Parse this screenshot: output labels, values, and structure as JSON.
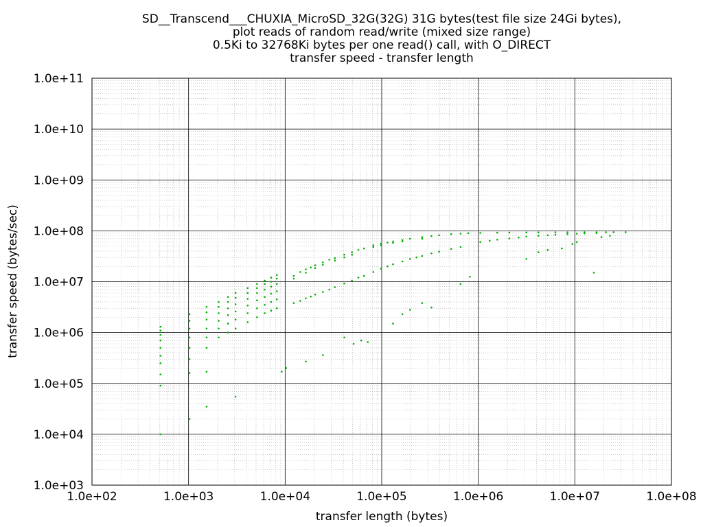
{
  "chart_data": {
    "type": "scatter",
    "title_lines": [
      "SD__Transcend___CHUXIA_MicroSD_32G(32G) 31G bytes(test file size 24Gi bytes),",
      "plot reads of random read/write (mixed size range)",
      "0.5Ki to 32768Ki bytes per one read() call, with O_DIRECT",
      "transfer speed - transfer length"
    ],
    "xlabel": "transfer length (bytes)",
    "ylabel": "transfer speed (bytes/sec)",
    "x_scale": "log",
    "y_scale": "log",
    "xlim": [
      100,
      100000000
    ],
    "ylim": [
      1000,
      100000000000
    ],
    "x_ticks": [
      {
        "value": 100,
        "label": "1.0e+02"
      },
      {
        "value": 1000,
        "label": "1.0e+03"
      },
      {
        "value": 10000,
        "label": "1.0e+04"
      },
      {
        "value": 100000,
        "label": "1.0e+05"
      },
      {
        "value": 1000000,
        "label": "1.0e+06"
      },
      {
        "value": 10000000,
        "label": "1.0e+07"
      },
      {
        "value": 100000000,
        "label": "1.0e+08"
      }
    ],
    "y_ticks": [
      {
        "value": 1000,
        "label": "1.0e+03"
      },
      {
        "value": 10000,
        "label": "1.0e+04"
      },
      {
        "value": 100000,
        "label": "1.0e+05"
      },
      {
        "value": 1000000,
        "label": "1.0e+06"
      },
      {
        "value": 10000000,
        "label": "1.0e+07"
      },
      {
        "value": 100000000,
        "label": "1.0e+08"
      },
      {
        "value": 1000000000,
        "label": "1.0e+09"
      },
      {
        "value": 10000000000,
        "label": "1.0e+10"
      },
      {
        "value": 100000000000,
        "label": "1.0e+11"
      }
    ],
    "grid": true,
    "legend": "none",
    "point_color": "#00b000",
    "series": [
      {
        "points": [
          [
            512,
            10000
          ],
          [
            512,
            90000
          ],
          [
            512,
            150000
          ],
          [
            512,
            250000
          ],
          [
            512,
            350000
          ],
          [
            512,
            500000
          ],
          [
            512,
            700000
          ],
          [
            512,
            900000
          ],
          [
            512,
            1100000
          ],
          [
            512,
            1300000
          ],
          [
            1024,
            20000
          ],
          [
            1024,
            160000
          ],
          [
            1024,
            300000
          ],
          [
            1024,
            500000
          ],
          [
            1024,
            800000
          ],
          [
            1024,
            1200000
          ],
          [
            1024,
            1700000
          ],
          [
            1024,
            2300000
          ],
          [
            1536,
            35000
          ],
          [
            1536,
            170000
          ],
          [
            1536,
            500000
          ],
          [
            1536,
            800000
          ],
          [
            1536,
            1200000
          ],
          [
            1536,
            1800000
          ],
          [
            1536,
            2500000
          ],
          [
            1536,
            3200000
          ],
          [
            2048,
            800000
          ],
          [
            2048,
            1200000
          ],
          [
            2048,
            1700000
          ],
          [
            2048,
            2400000
          ],
          [
            2048,
            3200000
          ],
          [
            2048,
            4000000
          ],
          [
            2560,
            1000000
          ],
          [
            2560,
            1500000
          ],
          [
            2560,
            2200000
          ],
          [
            2560,
            3000000
          ],
          [
            2560,
            4000000
          ],
          [
            2560,
            5000000
          ],
          [
            3072,
            55000
          ],
          [
            3072,
            1200000
          ],
          [
            3072,
            1800000
          ],
          [
            3072,
            2600000
          ],
          [
            3072,
            3600000
          ],
          [
            3072,
            4800000
          ],
          [
            3072,
            6000000
          ],
          [
            4096,
            1600000
          ],
          [
            4096,
            2400000
          ],
          [
            4096,
            3400000
          ],
          [
            4096,
            4600000
          ],
          [
            4096,
            6000000
          ],
          [
            4096,
            7500000
          ],
          [
            5120,
            2000000
          ],
          [
            5120,
            3000000
          ],
          [
            5120,
            4300000
          ],
          [
            5120,
            6000000
          ],
          [
            5120,
            7500000
          ],
          [
            5120,
            9000000
          ],
          [
            6144,
            2400000
          ],
          [
            6144,
            3500000
          ],
          [
            6144,
            5000000
          ],
          [
            6144,
            7000000
          ],
          [
            6144,
            9000000
          ],
          [
            6144,
            10500000
          ],
          [
            7168,
            2700000
          ],
          [
            7168,
            4000000
          ],
          [
            7168,
            5800000
          ],
          [
            7168,
            8000000
          ],
          [
            7168,
            10000000
          ],
          [
            7168,
            12000000
          ],
          [
            8192,
            3000000
          ],
          [
            8192,
            4500000
          ],
          [
            8192,
            6500000
          ],
          [
            8192,
            9000000
          ],
          [
            8192,
            11500000
          ],
          [
            8192,
            13500000
          ],
          [
            9216,
            170000
          ],
          [
            10240,
            200000
          ],
          [
            16384,
            270000
          ],
          [
            24576,
            360000
          ],
          [
            40960,
            800000
          ],
          [
            51200,
            600000
          ],
          [
            61440,
            700000
          ],
          [
            71680,
            650000
          ],
          [
            12288,
            3800000
          ],
          [
            14336,
            4200000
          ],
          [
            16384,
            4700000
          ],
          [
            18432,
            5100000
          ],
          [
            20480,
            5600000
          ],
          [
            24576,
            6300000
          ],
          [
            28672,
            7000000
          ],
          [
            32768,
            7800000
          ],
          [
            40960,
            9200000
          ],
          [
            49152,
            10500000
          ],
          [
            57344,
            12000000
          ],
          [
            65536,
            13000000
          ],
          [
            12288,
            13000000
          ],
          [
            14336,
            15500000
          ],
          [
            16384,
            17500000
          ],
          [
            18432,
            19000000
          ],
          [
            20480,
            21000000
          ],
          [
            24576,
            24000000
          ],
          [
            28672,
            27000000
          ],
          [
            32768,
            29000000
          ],
          [
            40960,
            34000000
          ],
          [
            49152,
            38000000
          ],
          [
            57344,
            42000000
          ],
          [
            65536,
            45000000
          ],
          [
            12288,
            11500000
          ],
          [
            16384,
            15000000
          ],
          [
            20480,
            18500000
          ],
          [
            24576,
            21500000
          ],
          [
            32768,
            26000000
          ],
          [
            40960,
            30000000
          ],
          [
            49152,
            34000000
          ],
          [
            81920,
            15500000
          ],
          [
            98304,
            18000000
          ],
          [
            114688,
            20000000
          ],
          [
            131072,
            22000000
          ],
          [
            163840,
            25000000
          ],
          [
            196608,
            28000000
          ],
          [
            229376,
            30000000
          ],
          [
            262144,
            32000000
          ],
          [
            327680,
            36000000
          ],
          [
            393216,
            39000000
          ],
          [
            524288,
            44000000
          ],
          [
            655360,
            48000000
          ],
          [
            81920,
            52000000
          ],
          [
            98304,
            56000000
          ],
          [
            114688,
            59000000
          ],
          [
            131072,
            62000000
          ],
          [
            163840,
            66000000
          ],
          [
            196608,
            70000000
          ],
          [
            262144,
            75000000
          ],
          [
            327680,
            79000000
          ],
          [
            393216,
            82000000
          ],
          [
            524288,
            86000000
          ],
          [
            655360,
            88000000
          ],
          [
            786432,
            90000000
          ],
          [
            81920,
            48000000
          ],
          [
            98304,
            52000000
          ],
          [
            131072,
            58000000
          ],
          [
            163840,
            62000000
          ],
          [
            262144,
            70000000
          ],
          [
            131072,
            1500000
          ],
          [
            163840,
            2300000
          ],
          [
            196608,
            2800000
          ],
          [
            262144,
            3800000
          ],
          [
            327680,
            3100000
          ],
          [
            655360,
            9000000
          ],
          [
            819200,
            12500000
          ],
          [
            1048576,
            60000000
          ],
          [
            1310720,
            64000000
          ],
          [
            1572864,
            67000000
          ],
          [
            2097152,
            71000000
          ],
          [
            2621440,
            74000000
          ],
          [
            3145728,
            77000000
          ],
          [
            4194304,
            80000000
          ],
          [
            5242880,
            82000000
          ],
          [
            6291456,
            84000000
          ],
          [
            8388608,
            86000000
          ],
          [
            10485760,
            88000000
          ],
          [
            12582912,
            89000000
          ],
          [
            16777216,
            90000000
          ],
          [
            1048576,
            91000000
          ],
          [
            1572864,
            92000000
          ],
          [
            2097152,
            92500000
          ],
          [
            3145728,
            93000000
          ],
          [
            4194304,
            93000000
          ],
          [
            6291456,
            93500000
          ],
          [
            8388608,
            93500000
          ],
          [
            12582912,
            94000000
          ],
          [
            16777216,
            94000000
          ],
          [
            20971520,
            94000000
          ],
          [
            25165824,
            94000000
          ],
          [
            33554432,
            94000000
          ],
          [
            3145728,
            28000000
          ],
          [
            4194304,
            38000000
          ],
          [
            5242880,
            42000000
          ],
          [
            7340032,
            45000000
          ],
          [
            9437184,
            55000000
          ],
          [
            10485760,
            60000000
          ],
          [
            15728640,
            15000000
          ],
          [
            18874368,
            75000000
          ],
          [
            23068672,
            80000000
          ]
        ]
      }
    ]
  }
}
